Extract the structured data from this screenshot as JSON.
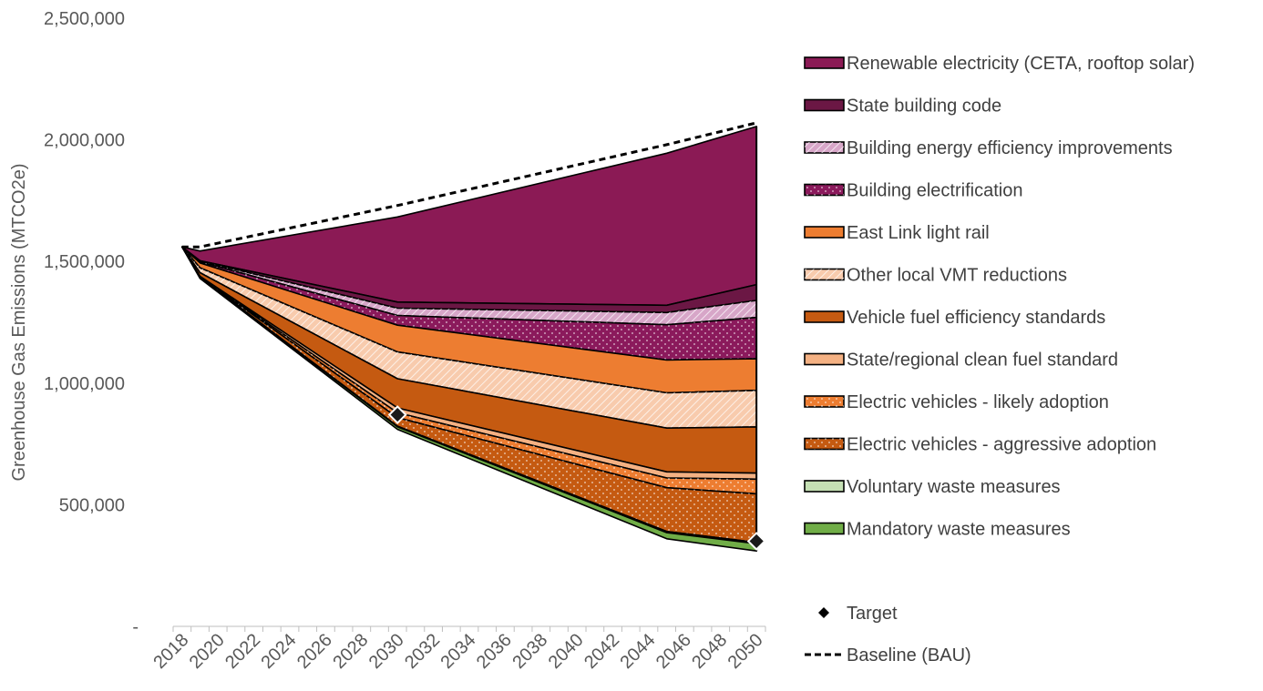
{
  "chart_data": {
    "type": "area",
    "title": "",
    "xlabel": "",
    "ylabel": "Greenhouse Gas Emissions (MTCO2e)",
    "ylim": [
      0,
      2500000
    ],
    "y_ticks": [
      0,
      500000,
      1000000,
      1500000,
      2000000,
      2500000
    ],
    "y_tick_labels": [
      "-",
      "500,000",
      "1,000,000",
      "1,500,000",
      "2,000,000",
      "2,500,000"
    ],
    "x_tick_labels": [
      "2018",
      "2020",
      "2022",
      "2024",
      "2026",
      "2028",
      "2030",
      "2032",
      "2034",
      "2036",
      "2038",
      "2040",
      "2042",
      "2044",
      "2046",
      "2048",
      "2050"
    ],
    "x": [
      2018,
      2019,
      2030,
      2045,
      2050
    ],
    "baseline": {
      "name": "Baseline (BAU)",
      "values": [
        1560000,
        1560000,
        1730000,
        1980000,
        2070000
      ]
    },
    "stack_bottom": [
      1560000,
      1430000,
      810000,
      360000,
      310000
    ],
    "series": [
      {
        "name": "Mandatory waste measures",
        "color": "#70ad47",
        "pattern": "solid",
        "values": [
          0,
          4000,
          10000,
          25000,
          30000
        ]
      },
      {
        "name": "Voluntary waste measures",
        "color": "#c5e0b4",
        "pattern": "solid",
        "values": [
          0,
          1000,
          3000,
          5000,
          5000
        ]
      },
      {
        "name": "Electric vehicles - aggressive adoption",
        "color": "#c55a11",
        "pattern": "dots",
        "values": [
          0,
          1000,
          35000,
          180000,
          200000
        ]
      },
      {
        "name": "Electric vehicles - likely adoption",
        "color": "#ed7d31",
        "pattern": "dots",
        "values": [
          0,
          1000,
          20000,
          40000,
          60000
        ]
      },
      {
        "name": "State/regional clean fuel standard",
        "color": "#f4b183",
        "pattern": "solid",
        "values": [
          0,
          2000,
          20000,
          25000,
          25000
        ]
      },
      {
        "name": "Vehicle fuel efficiency standards",
        "color": "#c55a11",
        "pattern": "solid",
        "values": [
          0,
          15000,
          120000,
          180000,
          190000
        ]
      },
      {
        "name": "Other local VMT reductions",
        "color": "#f8cbad",
        "pattern": "hatch",
        "values": [
          0,
          20000,
          110000,
          145000,
          150000
        ]
      },
      {
        "name": "East Link light rail",
        "color": "#ed7d31",
        "pattern": "solid",
        "values": [
          0,
          20000,
          110000,
          135000,
          130000
        ]
      },
      {
        "name": "Building electrification",
        "color": "#8b1a5c",
        "pattern": "dots",
        "values": [
          0,
          5000,
          40000,
          145000,
          170000
        ]
      },
      {
        "name": "Building energy efficiency improvements",
        "color": "#d7a6c8",
        "pattern": "hatch",
        "values": [
          0,
          2000,
          30000,
          50000,
          70000
        ]
      },
      {
        "name": "State building code",
        "color": "#6b1744",
        "pattern": "solid",
        "values": [
          0,
          2000,
          25000,
          30000,
          65000
        ]
      },
      {
        "name": "Renewable electricity (CETA, rooftop solar)",
        "color": "#8b1a55",
        "pattern": "solid",
        "values": [
          0,
          40000,
          350000,
          625000,
          650000
        ]
      }
    ],
    "targets": {
      "name": "Target",
      "points": [
        {
          "x": 2030,
          "y": 870000
        },
        {
          "x": 2050,
          "y": 350000
        }
      ]
    },
    "legend": {
      "placement": "right",
      "items": [
        "Renewable electricity (CETA, rooftop solar)",
        "State building code",
        "Building energy efficiency improvements",
        "Building electrification",
        "East Link light rail",
        "Other local VMT reductions",
        "Vehicle fuel efficiency standards",
        "State/regional clean fuel standard",
        "Electric vehicles - likely adoption",
        "Electric vehicles - aggressive adoption",
        "Voluntary waste measures",
        "Mandatory waste measures",
        "Target",
        "Baseline (BAU)"
      ]
    },
    "grid": false
  }
}
